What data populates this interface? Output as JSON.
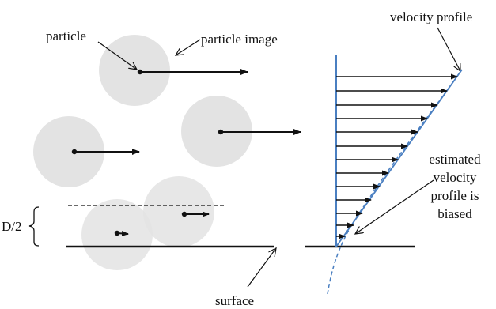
{
  "labels": {
    "particle": "particle",
    "particle_image": "particle image",
    "velocity_profile": "velocity profile",
    "estimated_line1": "estimated",
    "estimated_line2": "velocity",
    "estimated_line3": "profile is",
    "estimated_line4": "biased",
    "half_diameter": "D/2",
    "surface": "surface"
  },
  "colors": {
    "particle_image_fill": "#e3e3e3",
    "ink": "#111111",
    "profile_blue": "#4a7fc1"
  }
}
